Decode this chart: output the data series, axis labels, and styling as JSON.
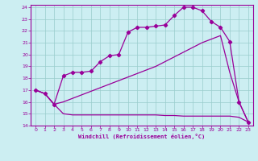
{
  "xlabel": "Windchill (Refroidissement éolien,°C)",
  "bg_color": "#cceef2",
  "line_color": "#990099",
  "grid_color": "#99cccc",
  "xlim": [
    -0.5,
    23.5
  ],
  "ylim": [
    14,
    24.2
  ],
  "xticks": [
    0,
    1,
    2,
    3,
    4,
    5,
    6,
    7,
    8,
    9,
    10,
    11,
    12,
    13,
    14,
    15,
    16,
    17,
    18,
    19,
    20,
    21,
    22,
    23
  ],
  "yticks": [
    14,
    15,
    16,
    17,
    18,
    19,
    20,
    21,
    22,
    23,
    24
  ],
  "line1_x": [
    0,
    1,
    2,
    3,
    4,
    5,
    6,
    7,
    8,
    9,
    10,
    11,
    12,
    13,
    14,
    15,
    16,
    17,
    18,
    19,
    20,
    21,
    22,
    23
  ],
  "line1_y": [
    17.0,
    16.7,
    15.8,
    15.0,
    14.9,
    14.9,
    14.9,
    14.9,
    14.9,
    14.9,
    14.9,
    14.9,
    14.9,
    14.9,
    14.85,
    14.85,
    14.8,
    14.8,
    14.8,
    14.8,
    14.8,
    14.8,
    14.7,
    14.3
  ],
  "line2_x": [
    0,
    1,
    2,
    3,
    4,
    5,
    6,
    7,
    8,
    9,
    10,
    11,
    12,
    13,
    14,
    15,
    16,
    17,
    18,
    19,
    20,
    21,
    22,
    23
  ],
  "line2_y": [
    17.0,
    16.7,
    15.8,
    16.0,
    16.3,
    16.6,
    16.9,
    17.2,
    17.5,
    17.8,
    18.1,
    18.4,
    18.7,
    19.0,
    19.4,
    19.8,
    20.2,
    20.6,
    21.0,
    21.3,
    21.6,
    18.5,
    16.0,
    14.3
  ],
  "line3_x": [
    0,
    1,
    2,
    3,
    4,
    5,
    6,
    7,
    8,
    9,
    10,
    11,
    12,
    13,
    14,
    15,
    16,
    17,
    18,
    19,
    20,
    21,
    22,
    23
  ],
  "line3_y": [
    17.0,
    16.7,
    15.8,
    18.2,
    18.5,
    18.5,
    18.6,
    19.4,
    19.9,
    20.0,
    21.9,
    22.3,
    22.3,
    22.4,
    22.5,
    23.3,
    24.0,
    24.0,
    23.7,
    22.8,
    22.3,
    21.1,
    16.0,
    14.3
  ]
}
